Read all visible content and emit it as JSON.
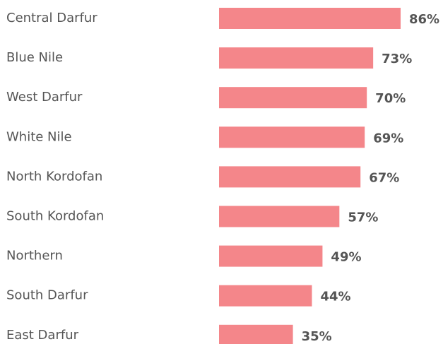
{
  "chart_data": {
    "type": "bar",
    "orientation": "horizontal",
    "categories": [
      "Central Darfur",
      "Blue Nile",
      "West Darfur",
      "White Nile",
      "North Kordofan",
      "South Kordofan",
      "Northern",
      "South Darfur",
      "East Darfur"
    ],
    "values": [
      86,
      73,
      70,
      69,
      67,
      57,
      49,
      44,
      35
    ],
    "value_labels": [
      "86%",
      "73%",
      "70%",
      "69%",
      "67%",
      "57%",
      "49%",
      "44%",
      "35%"
    ],
    "color": "#f4868a"
  }
}
